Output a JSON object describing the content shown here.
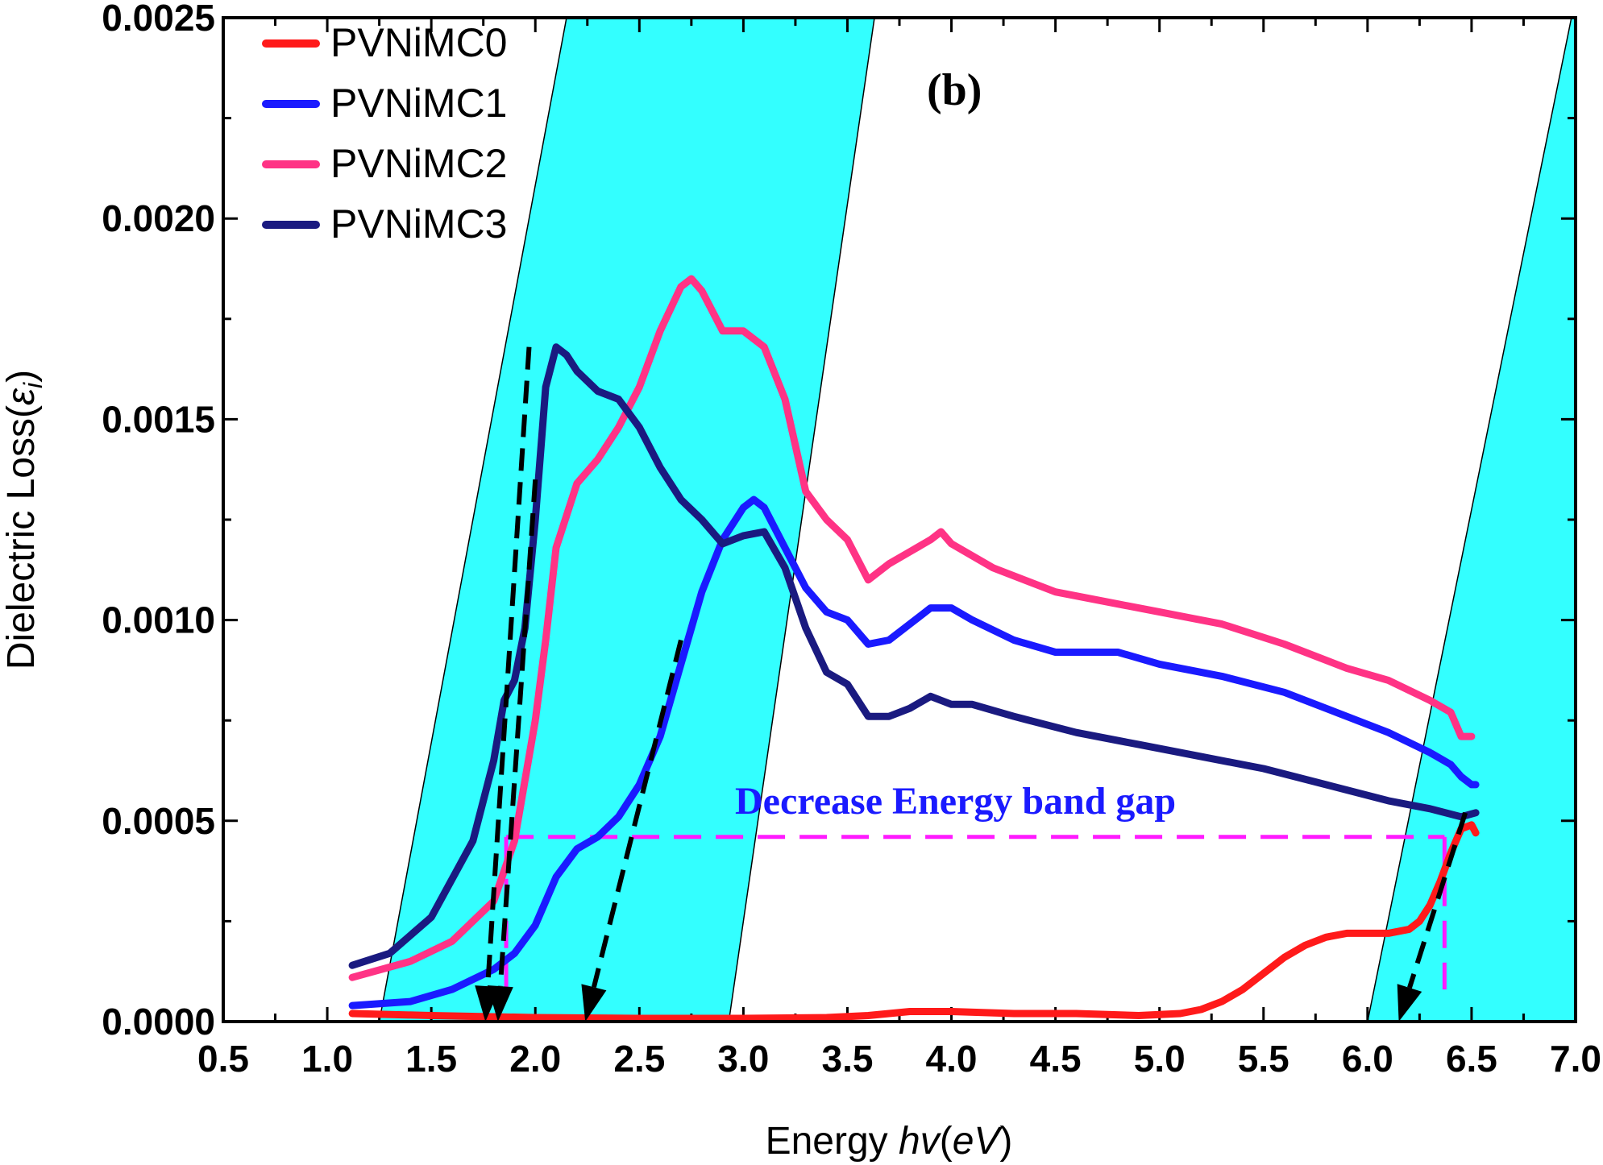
{
  "chart_data": {
    "type": "line",
    "title": "",
    "panel_label": "(b)",
    "xlabel_main": "Energy ",
    "xlabel_italic": "hv",
    "xlabel_unit_open": "(",
    "xlabel_unit": "eV",
    "xlabel_unit_close": ")",
    "ylabel_main": "Dielectric Loss",
    "ylabel_symbol_open": "(",
    "ylabel_symbol": "ε",
    "ylabel_subscript": "i",
    "ylabel_symbol_close": ")",
    "xlim": [
      0.5,
      7.0
    ],
    "ylim": [
      0.0,
      0.0025
    ],
    "xticks": [
      0.5,
      1.0,
      1.5,
      2.0,
      2.5,
      3.0,
      3.5,
      4.0,
      4.5,
      5.0,
      5.5,
      6.0,
      6.5,
      7.0
    ],
    "xtick_labels": [
      "0.5",
      "1.0",
      "1.5",
      "2.0",
      "2.5",
      "3.0",
      "3.5",
      "4.0",
      "4.5",
      "5.0",
      "5.5",
      "6.0",
      "6.5",
      "7.0"
    ],
    "yticks": [
      0.0,
      0.0005,
      0.001,
      0.0015,
      0.002,
      0.0025
    ],
    "ytick_labels": [
      "0.0000",
      "0.0005",
      "0.0010",
      "0.0015",
      "0.0020",
      "0.0025"
    ],
    "legend_position": "top-left",
    "annotation": "Decrease Energy band gap",
    "shaded_bands": [
      {
        "x_bottom": [
          1.25,
          2.93
        ],
        "x_top": [
          2.15,
          3.63
        ]
      },
      {
        "x_bottom": [
          6.0,
          7.0
        ],
        "x_top": [
          7.0,
          7.0
        ],
        "x_top_left_at_ymax": 6.98
      }
    ],
    "series": [
      {
        "name": "PVNiMC0",
        "color": "#ff1a1a",
        "x": [
          1.12,
          1.5,
          2.0,
          2.5,
          3.0,
          3.4,
          3.6,
          3.8,
          4.0,
          4.3,
          4.6,
          4.9,
          5.1,
          5.2,
          5.3,
          5.4,
          5.5,
          5.6,
          5.7,
          5.8,
          5.9,
          6.0,
          6.1,
          6.2,
          6.25,
          6.3,
          6.35,
          6.4,
          6.45,
          6.5,
          6.52
        ],
        "y": [
          2e-05,
          1.5e-05,
          1e-05,
          8e-06,
          8e-06,
          1e-05,
          1.5e-05,
          2.5e-05,
          2.5e-05,
          2e-05,
          2e-05,
          1.5e-05,
          2e-05,
          3e-05,
          5e-05,
          8e-05,
          0.00012,
          0.00016,
          0.00019,
          0.00021,
          0.00022,
          0.00022,
          0.00022,
          0.00023,
          0.00025,
          0.00029,
          0.00035,
          0.00042,
          0.00048,
          0.00049,
          0.00047
        ]
      },
      {
        "name": "PVNiMC1",
        "color": "#1a1aff",
        "x": [
          1.12,
          1.4,
          1.6,
          1.8,
          1.9,
          2.0,
          2.1,
          2.2,
          2.3,
          2.4,
          2.5,
          2.6,
          2.7,
          2.8,
          2.9,
          3.0,
          3.05,
          3.1,
          3.2,
          3.3,
          3.4,
          3.5,
          3.6,
          3.7,
          3.8,
          3.9,
          4.0,
          4.1,
          4.3,
          4.5,
          4.8,
          5.0,
          5.3,
          5.6,
          5.9,
          6.1,
          6.3,
          6.4,
          6.45,
          6.5,
          6.52
        ],
        "y": [
          4e-05,
          5e-05,
          8e-05,
          0.00013,
          0.00017,
          0.00024,
          0.00036,
          0.00043,
          0.00046,
          0.00051,
          0.00059,
          0.00071,
          0.00089,
          0.00107,
          0.0012,
          0.00128,
          0.0013,
          0.00128,
          0.00118,
          0.00108,
          0.00102,
          0.001,
          0.00094,
          0.00095,
          0.00099,
          0.00103,
          0.00103,
          0.001,
          0.00095,
          0.00092,
          0.00092,
          0.00089,
          0.00086,
          0.00082,
          0.00076,
          0.00072,
          0.00067,
          0.00064,
          0.00061,
          0.00059,
          0.00059
        ]
      },
      {
        "name": "PVNiMC2",
        "color": "#ff3385",
        "x": [
          1.12,
          1.4,
          1.6,
          1.8,
          1.9,
          2.0,
          2.05,
          2.1,
          2.2,
          2.3,
          2.4,
          2.5,
          2.6,
          2.7,
          2.75,
          2.8,
          2.9,
          3.0,
          3.1,
          3.2,
          3.3,
          3.4,
          3.5,
          3.6,
          3.65,
          3.7,
          3.8,
          3.9,
          3.95,
          4.0,
          4.2,
          4.5,
          4.8,
          5.0,
          5.3,
          5.6,
          5.9,
          6.1,
          6.3,
          6.4,
          6.45,
          6.5
        ],
        "y": [
          0.00011,
          0.00015,
          0.0002,
          0.0003,
          0.00045,
          0.00075,
          0.00095,
          0.00118,
          0.00134,
          0.0014,
          0.00148,
          0.00158,
          0.00172,
          0.00183,
          0.00185,
          0.00182,
          0.00172,
          0.00172,
          0.00168,
          0.00155,
          0.00132,
          0.00125,
          0.0012,
          0.0011,
          0.00112,
          0.00114,
          0.00117,
          0.0012,
          0.00122,
          0.00119,
          0.00113,
          0.00107,
          0.00104,
          0.00102,
          0.00099,
          0.00094,
          0.00088,
          0.00085,
          0.0008,
          0.00077,
          0.00071,
          0.00071
        ]
      },
      {
        "name": "PVNiMC3",
        "color": "#1a1a80",
        "x": [
          1.12,
          1.3,
          1.5,
          1.7,
          1.8,
          1.85,
          1.9,
          1.95,
          2.0,
          2.05,
          2.1,
          2.15,
          2.2,
          2.3,
          2.4,
          2.5,
          2.6,
          2.7,
          2.8,
          2.9,
          3.0,
          3.1,
          3.2,
          3.3,
          3.4,
          3.5,
          3.6,
          3.7,
          3.8,
          3.9,
          4.0,
          4.1,
          4.3,
          4.6,
          4.9,
          5.2,
          5.5,
          5.8,
          6.1,
          6.3,
          6.45,
          6.52
        ],
        "y": [
          0.00014,
          0.00017,
          0.00026,
          0.00045,
          0.00065,
          0.0008,
          0.00085,
          0.00098,
          0.00125,
          0.00158,
          0.00168,
          0.00166,
          0.00162,
          0.00157,
          0.00155,
          0.00148,
          0.00138,
          0.0013,
          0.00125,
          0.00119,
          0.00121,
          0.00122,
          0.00113,
          0.00098,
          0.00087,
          0.00084,
          0.00076,
          0.00076,
          0.00078,
          0.00081,
          0.00079,
          0.00079,
          0.00076,
          0.00072,
          0.00069,
          0.00066,
          0.00063,
          0.00059,
          0.00055,
          0.00053,
          0.00051,
          0.00052
        ]
      }
    ],
    "arrows": [
      {
        "x1": 1.97,
        "y1": 0.00168,
        "x2": 1.76,
        "y2": 0.0
      },
      {
        "x1": 2.0,
        "y1": 0.00135,
        "x2": 1.82,
        "y2": 0.0
      },
      {
        "x1": 2.7,
        "y1": 0.00095,
        "x2": 2.24,
        "y2": 0.0
      },
      {
        "x1": 6.47,
        "y1": 0.00052,
        "x2": 6.15,
        "y2": 0.0
      }
    ],
    "guide_line": {
      "y": 0.00046,
      "x_start": 1.86,
      "x_end": 6.37,
      "drop_x_left": 1.86,
      "drop_x_right": 6.37,
      "drop_to_y": 8e-05,
      "color": "#ff1aff"
    }
  },
  "colors": {
    "band": "#33ffff",
    "annotation": "#1a1aff",
    "arrow": "#000000"
  }
}
